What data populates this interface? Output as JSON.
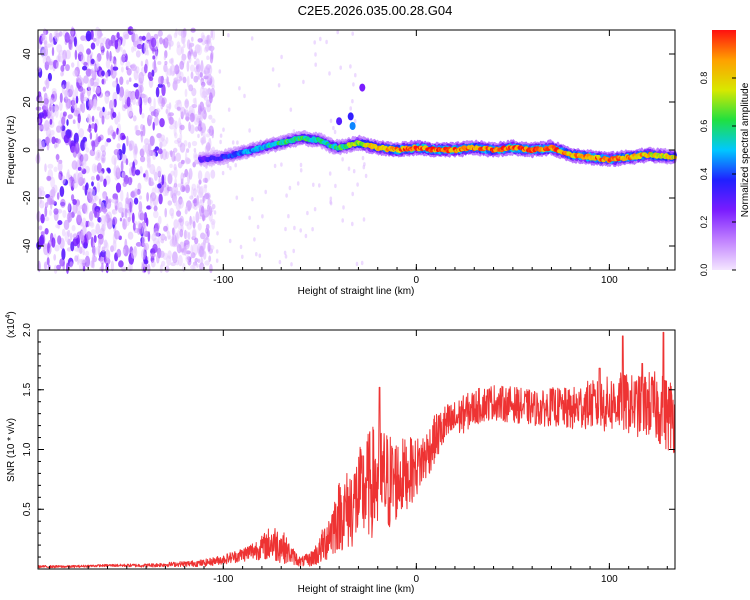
{
  "title": "C2E5.2026.035.00.28.G04",
  "colors": {
    "snr_line": "#ee3333",
    "axis": "#000000",
    "background": "#ffffff",
    "spectrum_min": "#f0e0ff",
    "spectrum_max": "#ff2020"
  },
  "chart_data": [
    {
      "type": "heatmap",
      "name": "spectrogram",
      "xlabel": "Height of straight line (km)",
      "ylabel": "Frequency (Hz)",
      "xlim": [
        -196,
        134
      ],
      "ylim": [
        -50,
        50
      ],
      "xticks": [
        -100,
        0,
        100
      ],
      "xtick_labels": [
        "-100",
        "0",
        "100"
      ],
      "yticks": [
        -40,
        -20,
        0,
        20,
        40
      ],
      "ytick_labels": [
        "-40",
        "-20",
        "0",
        "20",
        "40"
      ],
      "colorbar": {
        "label": "Normalized spectral amplitude",
        "range": [
          0,
          1
        ],
        "ticks": [
          0.0,
          0.2,
          0.4,
          0.6,
          0.8
        ],
        "tick_labels": [
          "0.0",
          "0.2",
          "0.4",
          "0.6",
          "0.8"
        ],
        "colors": [
          "#f4e6ff",
          "#c080ff",
          "#7a1cff",
          "#2020ff",
          "#00c8ff",
          "#20e040",
          "#d8e800",
          "#ffa000",
          "#ff1010"
        ]
      },
      "noise_region_x": [
        -196,
        -115
      ],
      "ridge": {
        "x": [
          -112,
          -100,
          -90,
          -80,
          -70,
          -60,
          -50,
          -45,
          -40,
          -35,
          -30,
          -25,
          -20,
          -10,
          0,
          10,
          20,
          30,
          40,
          50,
          60,
          70,
          80,
          90,
          100,
          110,
          120,
          134
        ],
        "freq": [
          -4,
          -3,
          -1,
          1,
          3,
          5,
          4,
          2,
          1,
          2,
          3,
          2,
          1,
          0,
          1,
          0,
          0,
          1,
          0,
          1,
          0,
          1,
          -2,
          -3,
          -4,
          -3,
          -2,
          -3
        ],
        "amplitude": [
          0.28,
          0.35,
          0.45,
          0.5,
          0.6,
          0.58,
          0.55,
          0.55,
          0.6,
          0.65,
          0.7,
          0.75,
          0.8,
          0.85,
          0.95,
          0.92,
          0.95,
          0.88,
          0.9,
          0.95,
          0.9,
          0.92,
          0.85,
          0.9,
          0.88,
          0.85,
          0.8,
          0.75
        ]
      }
    },
    {
      "type": "line",
      "name": "snr",
      "xlabel": "Height of straight line (km)",
      "ylabel": "SNR (10 * v/v)",
      "multiplier_label": "(x10",
      "multiplier_exponent": "4",
      "multiplier_suffix": ")",
      "xlim": [
        -196,
        134
      ],
      "ylim": [
        0,
        2.0
      ],
      "xticks": [
        -100,
        0,
        100
      ],
      "xtick_labels": [
        "-100",
        "0",
        "100"
      ],
      "yticks": [
        0.5,
        1.0,
        1.5,
        2.0
      ],
      "ytick_labels": [
        "0.5",
        "1.0",
        "1.5",
        "2.0"
      ],
      "series": [
        {
          "name": "SNR",
          "x": [
            -196,
            -180,
            -160,
            -140,
            -125,
            -110,
            -100,
            -90,
            -80,
            -75,
            -70,
            -65,
            -60,
            -55,
            -50,
            -45,
            -40,
            -35,
            -30,
            -25,
            -20,
            -15,
            -10,
            -5,
            0,
            5,
            10,
            15,
            20,
            25,
            30,
            35,
            40,
            45,
            50,
            55,
            60,
            65,
            70,
            75,
            80,
            85,
            90,
            95,
            100,
            105,
            110,
            115,
            120,
            125,
            130,
            134
          ],
          "y": [
            0.02,
            0.02,
            0.03,
            0.03,
            0.04,
            0.05,
            0.08,
            0.12,
            0.18,
            0.22,
            0.2,
            0.12,
            0.06,
            0.08,
            0.15,
            0.3,
            0.45,
            0.5,
            0.6,
            0.7,
            0.75,
            0.72,
            0.75,
            0.8,
            0.85,
            0.95,
            1.1,
            1.2,
            1.25,
            1.3,
            1.35,
            1.38,
            1.4,
            1.38,
            1.38,
            1.36,
            1.35,
            1.34,
            1.36,
            1.35,
            1.33,
            1.36,
            1.38,
            1.36,
            1.38,
            1.4,
            1.38,
            1.36,
            1.38,
            1.35,
            1.3,
            1.28
          ],
          "spread": [
            0.01,
            0.01,
            0.01,
            0.015,
            0.02,
            0.03,
            0.04,
            0.06,
            0.1,
            0.16,
            0.15,
            0.08,
            0.04,
            0.06,
            0.12,
            0.22,
            0.3,
            0.35,
            0.4,
            0.45,
            0.5,
            0.45,
            0.35,
            0.3,
            0.25,
            0.22,
            0.2,
            0.18,
            0.16,
            0.16,
            0.15,
            0.15,
            0.15,
            0.15,
            0.15,
            0.15,
            0.15,
            0.15,
            0.16,
            0.17,
            0.18,
            0.2,
            0.2,
            0.22,
            0.24,
            0.25,
            0.25,
            0.26,
            0.28,
            0.3,
            0.32,
            0.32
          ],
          "peaks": [
            {
              "x": -19,
              "y": 1.52
            },
            {
              "x": 107,
              "y": 1.95
            },
            {
              "x": 128,
              "y": 1.98
            },
            {
              "x": 117,
              "y": 1.72
            },
            {
              "x": 95,
              "y": 1.68
            }
          ]
        }
      ]
    }
  ]
}
